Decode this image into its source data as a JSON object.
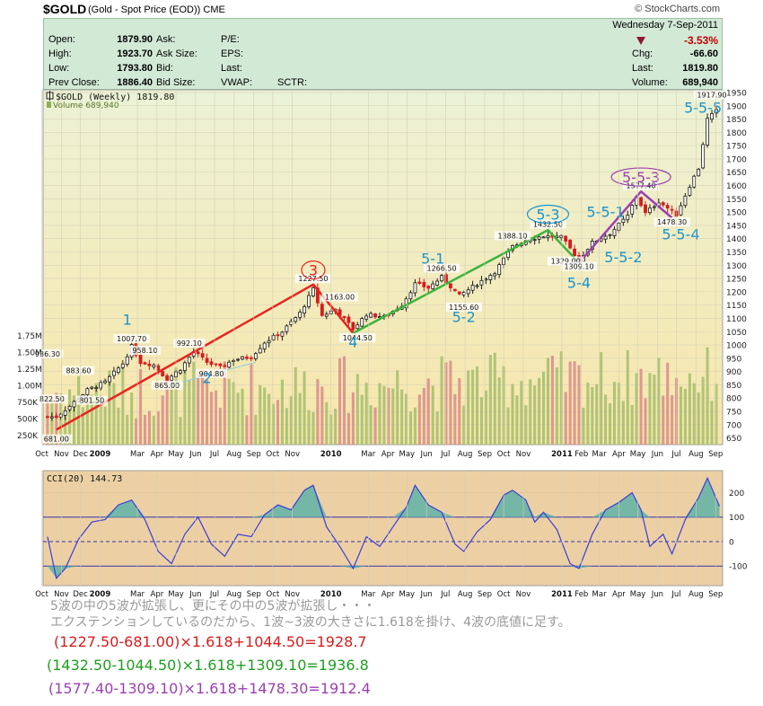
{
  "header": {
    "symbol": "$GOLD",
    "description": "(Gold - Spot Price (EOD))",
    "exchange": "CME",
    "source": "© StockCharts.com"
  },
  "quote": {
    "date": "Wednesday  7-Sep-2011",
    "pct_change": "-3.53%",
    "fields": [
      {
        "label": "Open:",
        "value": "1879.90"
      },
      {
        "label": "High:",
        "value": "1923.70"
      },
      {
        "label": "Low:",
        "value": "1793.80"
      },
      {
        "label": "Prev Close:",
        "value": "1886.40"
      }
    ],
    "fields2": [
      "Ask:",
      "Ask Size:",
      "Bid:",
      "Bid Size:"
    ],
    "fields3": [
      "P/E:",
      "EPS:",
      "Last:",
      "VWAP:"
    ],
    "sctr_label": "SCTR:",
    "right_fields": [
      {
        "label": "Chg:",
        "value": "-66.60"
      },
      {
        "label": "Last:",
        "value": "1819.80"
      },
      {
        "label": "Volume:",
        "value": "689,940"
      }
    ]
  },
  "chart_data": [
    {
      "type": "candlestick",
      "legend": [
        "$GOLD (Weekly) 1819.80",
        "Volume 689,940"
      ],
      "x_tick_labels": [
        "Oct",
        "Nov",
        "Dec",
        "2009",
        "Mar",
        "Apr",
        "May",
        "Jun",
        "Jul",
        "Aug",
        "Sep",
        "Oct",
        "Nov",
        "2010",
        "Mar",
        "Apr",
        "May",
        "Jun",
        "Jul",
        "Aug",
        "Sep",
        "Oct",
        "Nov",
        "2011",
        "Feb",
        "Mar",
        "Apr",
        "May",
        "Jun",
        "Jul",
        "Aug",
        "Sep"
      ],
      "y_tick_labels": [
        "1950",
        "1900",
        "1850",
        "1800",
        "1750",
        "1700",
        "1650",
        "1600",
        "1550",
        "1500",
        "1450",
        "1400",
        "1350",
        "1300",
        "1250",
        "1200",
        "1150",
        "1100",
        "1050",
        "1000",
        "950",
        "900",
        "850",
        "800",
        "750",
        "700",
        "650"
      ],
      "ylim": [
        625,
        1960
      ],
      "volume_tick_labels": [
        "1.75M",
        "1.50M",
        "1.25M",
        "1.00M",
        "750K",
        "500K",
        "250K"
      ],
      "close_path": [
        {
          "d": "2008-10-24",
          "v": 730
        },
        {
          "d": "2008-11-14",
          "v": 770
        },
        {
          "d": "2008-12-12",
          "v": 830
        },
        {
          "d": "2009-01-09",
          "v": 860
        },
        {
          "d": "2009-02-06",
          "v": 930
        },
        {
          "d": "2009-02-20",
          "v": 995
        },
        {
          "d": "2009-03-06",
          "v": 935
        },
        {
          "d": "2009-03-27",
          "v": 925
        },
        {
          "d": "2009-04-17",
          "v": 870
        },
        {
          "d": "2009-05-08",
          "v": 910
        },
        {
          "d": "2009-05-29",
          "v": 975
        },
        {
          "d": "2009-06-19",
          "v": 935
        },
        {
          "d": "2009-07-10",
          "v": 915
        },
        {
          "d": "2009-07-31",
          "v": 945
        },
        {
          "d": "2009-08-28",
          "v": 955
        },
        {
          "d": "2009-09-18",
          "v": 1010
        },
        {
          "d": "2009-10-16",
          "v": 1050
        },
        {
          "d": "2009-11-13",
          "v": 1120
        },
        {
          "d": "2009-12-04",
          "v": 1210
        },
        {
          "d": "2009-12-18",
          "v": 1110
        },
        {
          "d": "2010-01-08",
          "v": 1135
        },
        {
          "d": "2010-02-05",
          "v": 1060
        },
        {
          "d": "2010-02-26",
          "v": 1115
        },
        {
          "d": "2010-03-26",
          "v": 1105
        },
        {
          "d": "2010-04-23",
          "v": 1150
        },
        {
          "d": "2010-05-14",
          "v": 1230
        },
        {
          "d": "2010-06-04",
          "v": 1215
        },
        {
          "d": "2010-06-25",
          "v": 1255
        },
        {
          "d": "2010-07-23",
          "v": 1185
        },
        {
          "d": "2010-08-20",
          "v": 1230
        },
        {
          "d": "2010-09-17",
          "v": 1275
        },
        {
          "d": "2010-10-15",
          "v": 1370
        },
        {
          "d": "2010-11-05",
          "v": 1395
        },
        {
          "d": "2010-12-03",
          "v": 1410
        },
        {
          "d": "2010-12-31",
          "v": 1405
        },
        {
          "d": "2011-01-28",
          "v": 1320
        },
        {
          "d": "2011-02-18",
          "v": 1385
        },
        {
          "d": "2011-03-18",
          "v": 1420
        },
        {
          "d": "2011-04-15",
          "v": 1485
        },
        {
          "d": "2011-04-29",
          "v": 1560
        },
        {
          "d": "2011-05-13",
          "v": 1495
        },
        {
          "d": "2011-06-03",
          "v": 1540
        },
        {
          "d": "2011-07-01",
          "v": 1490
        },
        {
          "d": "2011-07-22",
          "v": 1600
        },
        {
          "d": "2011-08-05",
          "v": 1665
        },
        {
          "d": "2011-08-19",
          "v": 1850
        },
        {
          "d": "2011-09-02",
          "v": 1880
        },
        {
          "d": "2011-09-07",
          "v": 1820
        }
      ],
      "wave_lines": [
        {
          "color": "#e8231f",
          "points": [
            {
              "d": "2008-10-24",
              "v": 681.0
            },
            {
              "d": "2009-12-04",
              "v": 1227.5
            },
            {
              "d": "2010-02-05",
              "v": 1044.5
            }
          ]
        },
        {
          "color": "#3cb43c",
          "points": [
            {
              "d": "2010-02-05",
              "v": 1044.5
            },
            {
              "d": "2010-12-10",
              "v": 1432.5
            },
            {
              "d": "2011-01-28",
              "v": 1309.1
            }
          ]
        },
        {
          "color": "#9b3fb0",
          "points": [
            {
              "d": "2011-01-28",
              "v": 1309.1
            },
            {
              "d": "2011-05-06",
              "v": 1577.4
            },
            {
              "d": "2011-06-24",
              "v": 1478.3
            }
          ]
        }
      ],
      "price_labels": [
        {
          "text": "936.30",
          "d": "2008-10-10",
          "v": 960
        },
        {
          "text": "822.50",
          "d": "2008-10-17",
          "v": 790
        },
        {
          "text": "681.00",
          "d": "2008-10-24",
          "v": 640
        },
        {
          "text": "883.60",
          "d": "2008-11-28",
          "v": 897
        },
        {
          "text": "1007.70",
          "d": "2009-02-20",
          "v": 1017
        },
        {
          "text": "958.10",
          "d": "2009-03-13",
          "v": 973
        },
        {
          "text": "865.00",
          "d": "2009-04-17",
          "v": 842
        },
        {
          "text": "992.10",
          "d": "2009-05-22",
          "v": 1000
        },
        {
          "text": "904.80",
          "d": "2009-06-26",
          "v": 886
        },
        {
          "text": "801.50",
          "d": "2008-12-19",
          "v": 785
        },
        {
          "text": "1227.50",
          "d": "2009-12-04",
          "v": 1243
        },
        {
          "text": "1163.00",
          "d": "2010-01-15",
          "v": 1174
        },
        {
          "text": "1044.50",
          "d": "2010-02-12",
          "v": 1021
        },
        {
          "text": "1266.50",
          "d": "2010-06-25",
          "v": 1282
        },
        {
          "text": "1155.60",
          "d": "2010-07-30",
          "v": 1136
        },
        {
          "text": "1388.10",
          "d": "2010-10-15",
          "v": 1404
        },
        {
          "text": "1432.50",
          "d": "2010-12-10",
          "v": 1448
        },
        {
          "text": "1329.00",
          "d": "2011-01-07",
          "v": 1309
        },
        {
          "text": "1309.10",
          "d": "2011-01-28",
          "v": 1289
        },
        {
          "text": "1577.40",
          "d": "2011-05-06",
          "v": 1593
        },
        {
          "text": "1478.30",
          "d": "2011-06-24",
          "v": 1456
        },
        {
          "text": "1917.90",
          "d": "2011-08-26",
          "v": 1934
        }
      ],
      "wave_labels": [
        {
          "text": "1",
          "d": "2009-02-13",
          "v": 1080,
          "color": "#1a93cc"
        },
        {
          "text": "2",
          "d": "2009-06-19",
          "v": 860,
          "color": "#1a93cc"
        },
        {
          "text": "3",
          "d": "2009-12-04",
          "v": 1265,
          "color": "#e8231f",
          "circle": true
        },
        {
          "text": "4",
          "d": "2010-02-05",
          "v": 995,
          "color": "#1a93cc"
        },
        {
          "text": "5-1",
          "d": "2010-06-11",
          "v": 1310,
          "color": "#1a93cc"
        },
        {
          "text": "5-2",
          "d": "2010-07-30",
          "v": 1090,
          "color": "#1a93cc"
        },
        {
          "text": "5-3",
          "d": "2010-12-10",
          "v": 1475,
          "color": "#1a93cc",
          "circle": true
        },
        {
          "text": "5-4",
          "d": "2011-01-28",
          "v": 1218,
          "color": "#1a93cc"
        },
        {
          "text": "5-5-1",
          "d": "2011-03-11",
          "v": 1485,
          "color": "#1a93cc"
        },
        {
          "text": "5-5-2",
          "d": "2011-04-08",
          "v": 1315,
          "color": "#1a93cc"
        },
        {
          "text": "5-5-3",
          "d": "2011-05-06",
          "v": 1615,
          "color": "#9b3fb0",
          "circle": true
        },
        {
          "text": "5-5-4",
          "d": "2011-07-08",
          "v": 1400,
          "color": "#1a93cc"
        },
        {
          "text": "5-5-5",
          "d": "2011-08-12",
          "v": 1878,
          "color": "#1a93cc"
        }
      ]
    },
    {
      "type": "line",
      "name": "CCI(20) 144.73",
      "ylim": [
        -180,
        290
      ],
      "y_tick_labels": [
        "200",
        "100",
        "0",
        "-100"
      ],
      "x_tick_labels": [
        "Oct",
        "Nov",
        "Dec",
        "2009",
        "Mar",
        "Apr",
        "May",
        "Jun",
        "Jul",
        "Aug",
        "Sep",
        "Oct",
        "Nov",
        "2010",
        "Mar",
        "Apr",
        "May",
        "Jun",
        "Jul",
        "Aug",
        "Sep",
        "Oct",
        "Nov",
        "2011",
        "Feb",
        "Mar",
        "Apr",
        "May",
        "Jun",
        "Jul",
        "Aug",
        "Sep"
      ],
      "series": [
        {
          "d": "2008-10-10",
          "v": 20
        },
        {
          "d": "2008-10-24",
          "v": -150
        },
        {
          "d": "2008-11-07",
          "v": -110
        },
        {
          "d": "2008-11-28",
          "v": 10
        },
        {
          "d": "2008-12-19",
          "v": 80
        },
        {
          "d": "2009-01-09",
          "v": 90
        },
        {
          "d": "2009-01-30",
          "v": 150
        },
        {
          "d": "2009-02-20",
          "v": 170
        },
        {
          "d": "2009-03-13",
          "v": 90
        },
        {
          "d": "2009-04-03",
          "v": -40
        },
        {
          "d": "2009-04-24",
          "v": -90
        },
        {
          "d": "2009-05-15",
          "v": 30
        },
        {
          "d": "2009-06-05",
          "v": 100
        },
        {
          "d": "2009-06-26",
          "v": -10
        },
        {
          "d": "2009-07-17",
          "v": -60
        },
        {
          "d": "2009-08-07",
          "v": 30
        },
        {
          "d": "2009-08-28",
          "v": 20
        },
        {
          "d": "2009-09-18",
          "v": 110
        },
        {
          "d": "2009-10-09",
          "v": 150
        },
        {
          "d": "2009-10-30",
          "v": 130
        },
        {
          "d": "2009-11-20",
          "v": 210
        },
        {
          "d": "2009-12-04",
          "v": 230
        },
        {
          "d": "2009-12-25",
          "v": 60
        },
        {
          "d": "2010-01-15",
          "v": -20
        },
        {
          "d": "2010-02-05",
          "v": -110
        },
        {
          "d": "2010-02-26",
          "v": 20
        },
        {
          "d": "2010-03-19",
          "v": -20
        },
        {
          "d": "2010-04-09",
          "v": 60
        },
        {
          "d": "2010-04-30",
          "v": 140
        },
        {
          "d": "2010-05-14",
          "v": 230
        },
        {
          "d": "2010-06-04",
          "v": 150
        },
        {
          "d": "2010-06-25",
          "v": 120
        },
        {
          "d": "2010-07-16",
          "v": -10
        },
        {
          "d": "2010-07-30",
          "v": -40
        },
        {
          "d": "2010-08-20",
          "v": 40
        },
        {
          "d": "2010-09-10",
          "v": 90
        },
        {
          "d": "2010-10-01",
          "v": 190
        },
        {
          "d": "2010-10-15",
          "v": 210
        },
        {
          "d": "2010-11-05",
          "v": 170
        },
        {
          "d": "2010-11-19",
          "v": 80
        },
        {
          "d": "2010-12-03",
          "v": 120
        },
        {
          "d": "2010-12-24",
          "v": 50
        },
        {
          "d": "2011-01-14",
          "v": -90
        },
        {
          "d": "2011-01-28",
          "v": -110
        },
        {
          "d": "2011-02-18",
          "v": 30
        },
        {
          "d": "2011-03-11",
          "v": 130
        },
        {
          "d": "2011-04-01",
          "v": 160
        },
        {
          "d": "2011-04-22",
          "v": 200
        },
        {
          "d": "2011-05-06",
          "v": 130
        },
        {
          "d": "2011-05-20",
          "v": -20
        },
        {
          "d": "2011-06-10",
          "v": 30
        },
        {
          "d": "2011-06-24",
          "v": -50
        },
        {
          "d": "2011-07-15",
          "v": 90
        },
        {
          "d": "2011-08-05",
          "v": 180
        },
        {
          "d": "2011-08-19",
          "v": 260
        },
        {
          "d": "2011-09-07",
          "v": 145
        }
      ]
    }
  ],
  "notes": {
    "line1": "5波の中の5波が拡張し、更にその中の5波が拡張し・・・",
    "line2": "エクステンションしているのだから、1波~3波の大きさに1.618を掛け、4波の底値に足す。",
    "line3": "(1227.50-681.00)×1.618+1044.50=1928.7",
    "line4": "(1432.50-1044.50)×1.618+1309.10=1936.8",
    "line5": "(1577.40-1309.10)×1.618+1478.30=1912.4"
  },
  "colors": {
    "price_bg_top": "#ecf2d6",
    "price_bg_bottom": "#f7e6aa",
    "cci_bg": "#ecd0a4",
    "cci_line": "#3b3bd8",
    "cci_fill": "#68b4a6",
    "wave_blue": "#1a93cc"
  }
}
